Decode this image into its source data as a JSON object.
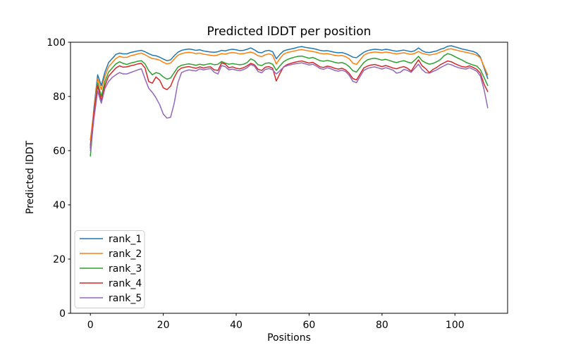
{
  "window": {
    "title": "Predicted lDDT per position"
  },
  "chart_data": {
    "type": "line",
    "title": "Predicted lDDT per position",
    "xlabel": "Positions",
    "ylabel": "Predicted lDDT",
    "xlim": [
      -5.45,
      114.45
    ],
    "ylim": [
      0,
      100
    ],
    "x_ticks": [
      0,
      20,
      40,
      60,
      80,
      100
    ],
    "y_ticks": [
      0,
      20,
      40,
      60,
      80,
      100
    ],
    "grid": false,
    "legend_position": "lower left",
    "x_start": 0,
    "x_step": 1,
    "n_points": 110,
    "series": [
      {
        "name": "rank_1",
        "color": "#1f77b4",
        "values": [
          62.0,
          76.0,
          88.0,
          84.0,
          89.0,
          92.5,
          94.0,
          95.5,
          96.0,
          95.7,
          95.7,
          96.2,
          96.5,
          96.8,
          97.0,
          96.5,
          95.8,
          95.2,
          95.0,
          94.5,
          93.8,
          93.2,
          93.5,
          95.0,
          96.3,
          97.0,
          97.3,
          97.5,
          97.3,
          97.0,
          97.2,
          96.8,
          96.6,
          96.4,
          96.3,
          96.5,
          97.0,
          96.8,
          97.2,
          97.4,
          97.2,
          96.9,
          97.0,
          97.4,
          97.9,
          97.2,
          96.3,
          96.1,
          96.8,
          97.0,
          96.5,
          93.9,
          95.5,
          96.8,
          97.2,
          97.5,
          97.8,
          98.2,
          98.4,
          98.1,
          97.9,
          97.7,
          97.4,
          97.0,
          96.8,
          96.9,
          96.6,
          96.3,
          96.1,
          96.2,
          95.8,
          95.2,
          94.5,
          94.3,
          95.3,
          96.3,
          96.9,
          97.2,
          97.4,
          97.3,
          97.1,
          97.4,
          97.2,
          96.9,
          96.7,
          96.9,
          97.1,
          96.8,
          96.5,
          96.9,
          97.9,
          96.9,
          96.3,
          96.2,
          96.5,
          96.8,
          97.4,
          97.8,
          98.5,
          98.7,
          98.3,
          97.9,
          97.5,
          97.2,
          96.9,
          96.6,
          96.0,
          94.5,
          90.5,
          86.6
        ]
      },
      {
        "name": "rank_2",
        "color": "#ff7f0e",
        "values": [
          64.0,
          75.0,
          86.5,
          82.5,
          87.5,
          91.0,
          92.5,
          94.0,
          94.8,
          94.4,
          94.4,
          95.0,
          95.3,
          95.7,
          96.0,
          95.4,
          94.6,
          94.0,
          93.8,
          93.4,
          92.6,
          92.0,
          92.3,
          93.8,
          95.2,
          95.8,
          96.1,
          96.3,
          96.1,
          95.8,
          96.0,
          95.6,
          95.4,
          95.2,
          95.0,
          95.3,
          95.8,
          95.6,
          96.0,
          96.2,
          96.0,
          95.7,
          95.8,
          96.1,
          96.4,
          95.9,
          95.0,
          94.7,
          95.4,
          95.7,
          95.2,
          92.0,
          94.0,
          95.6,
          96.2,
          96.5,
          96.8,
          97.1,
          97.3,
          97.0,
          96.8,
          96.6,
          96.3,
          95.9,
          95.7,
          95.8,
          95.5,
          95.2,
          95.0,
          95.1,
          94.7,
          93.9,
          92.3,
          91.8,
          93.5,
          95.2,
          95.9,
          96.2,
          96.4,
          96.3,
          96.1,
          96.4,
          96.2,
          95.9,
          95.7,
          95.9,
          96.1,
          95.8,
          95.5,
          95.9,
          96.6,
          95.9,
          95.6,
          95.3,
          95.5,
          95.8,
          96.4,
          96.8,
          97.4,
          97.6,
          97.2,
          96.9,
          96.6,
          96.3,
          96.0,
          95.7,
          95.2,
          94.2,
          91.0,
          87.9
        ]
      },
      {
        "name": "rank_3",
        "color": "#2ca02c",
        "values": [
          58.0,
          73.0,
          85.0,
          80.0,
          85.5,
          89.0,
          90.5,
          92.0,
          92.8,
          92.2,
          91.8,
          92.3,
          92.6,
          93.0,
          93.2,
          92.0,
          89.5,
          88.0,
          88.8,
          88.4,
          87.2,
          86.4,
          86.8,
          88.8,
          90.8,
          91.5,
          91.8,
          92.0,
          91.8,
          91.5,
          91.9,
          91.6,
          91.9,
          92.1,
          91.7,
          91.9,
          92.9,
          92.3,
          91.9,
          92.1,
          91.9,
          91.7,
          91.9,
          92.5,
          93.9,
          93.2,
          91.7,
          91.4,
          92.2,
          92.4,
          91.9,
          89.6,
          91.3,
          92.8,
          93.6,
          94.1,
          94.5,
          94.8,
          94.9,
          94.5,
          94.1,
          94.4,
          93.8,
          93.2,
          93.0,
          93.3,
          93.0,
          92.6,
          92.3,
          92.5,
          92.0,
          91.0,
          89.5,
          89.0,
          90.8,
          92.5,
          93.5,
          93.9,
          94.1,
          93.8,
          93.4,
          93.7,
          93.3,
          92.8,
          92.5,
          92.9,
          93.2,
          92.7,
          92.3,
          93.4,
          94.8,
          93.2,
          92.4,
          91.9,
          92.2,
          92.8,
          93.6,
          95.0,
          95.8,
          95.4,
          94.7,
          94.0,
          93.4,
          92.6,
          92.1,
          91.6,
          91.2,
          89.8,
          87.0,
          84.0
        ]
      },
      {
        "name": "rank_4",
        "color": "#d62728",
        "values": [
          61.0,
          74.0,
          84.0,
          78.5,
          84.0,
          87.5,
          89.0,
          90.5,
          91.3,
          90.8,
          90.9,
          91.3,
          91.6,
          92.0,
          92.2,
          90.5,
          85.5,
          84.9,
          87.2,
          86.0,
          83.2,
          82.5,
          83.8,
          87.0,
          89.5,
          90.5,
          90.8,
          91.0,
          90.7,
          90.4,
          90.9,
          90.5,
          90.8,
          90.9,
          89.8,
          89.6,
          92.4,
          91.9,
          90.6,
          90.9,
          90.4,
          90.2,
          90.6,
          91.3,
          92.2,
          91.7,
          90.0,
          89.6,
          90.8,
          91.0,
          90.4,
          85.7,
          88.5,
          90.9,
          91.8,
          92.2,
          92.6,
          92.9,
          93.1,
          92.7,
          92.3,
          92.6,
          91.8,
          90.9,
          90.7,
          91.2,
          90.9,
          90.4,
          90.1,
          90.4,
          89.8,
          88.5,
          86.6,
          86.1,
          88.3,
          90.5,
          91.2,
          91.6,
          91.8,
          91.4,
          91.0,
          91.4,
          91.0,
          90.5,
          90.2,
          90.7,
          91.0,
          90.4,
          89.3,
          91.5,
          93.5,
          91.3,
          90.2,
          88.8,
          90.0,
          90.7,
          91.7,
          92.4,
          93.1,
          92.8,
          92.1,
          91.5,
          91.0,
          90.8,
          91.3,
          90.7,
          90.0,
          88.5,
          84.5,
          81.8
        ]
      },
      {
        "name": "rank_5",
        "color": "#9467bd",
        "values": [
          60.0,
          72.0,
          82.0,
          77.5,
          83.0,
          85.5,
          87.0,
          88.0,
          88.8,
          88.3,
          88.3,
          88.8,
          89.3,
          89.8,
          90.2,
          86.5,
          83.0,
          81.5,
          79.5,
          77.0,
          73.5,
          72.0,
          72.3,
          77.5,
          85.0,
          88.8,
          89.4,
          89.8,
          89.6,
          89.4,
          90.2,
          89.8,
          90.1,
          90.3,
          88.9,
          88.3,
          91.4,
          91.0,
          89.8,
          90.1,
          89.7,
          89.5,
          89.9,
          90.6,
          91.8,
          91.2,
          89.2,
          88.7,
          90.0,
          90.3,
          89.8,
          88.3,
          89.5,
          90.8,
          91.4,
          91.7,
          92.0,
          92.2,
          92.4,
          92.0,
          91.6,
          91.9,
          91.2,
          90.3,
          90.0,
          90.6,
          90.2,
          89.6,
          89.3,
          89.7,
          89.2,
          87.8,
          85.6,
          85.1,
          87.4,
          89.6,
          90.3,
          90.7,
          90.9,
          90.5,
          90.1,
          90.6,
          90.2,
          89.7,
          88.6,
          88.9,
          90.0,
          89.6,
          88.9,
          90.4,
          91.9,
          89.9,
          88.8,
          88.6,
          89.2,
          89.8,
          90.6,
          91.3,
          92.0,
          91.7,
          91.1,
          90.6,
          90.3,
          90.1,
          90.6,
          90.0,
          89.3,
          87.5,
          82.5,
          75.8
        ]
      }
    ],
    "legend_labels": [
      "rank_1",
      "rank_2",
      "rank_3",
      "rank_4",
      "rank_5"
    ],
    "plot_style": {
      "background": "#ffffff",
      "spine_color": "#000000",
      "legend_border_color": "#cccccc",
      "legend_background": "rgba(255,255,255,0.8)",
      "line_width": 1.5
    }
  }
}
